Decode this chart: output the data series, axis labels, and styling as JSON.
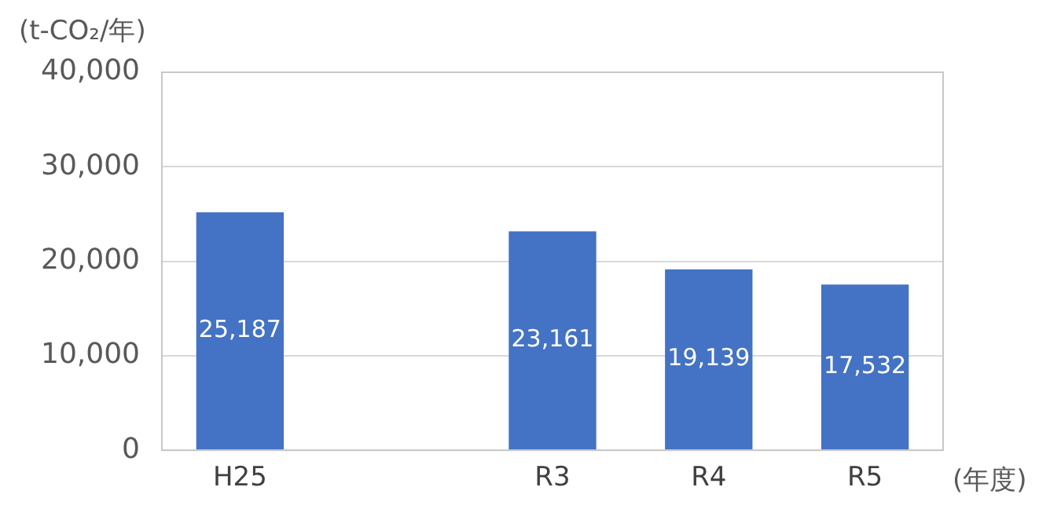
{
  "chart_data": {
    "type": "bar",
    "ylabel": "(t-CO₂/年)",
    "xlabel": "(年度)",
    "categories": [
      "H25",
      null,
      "R3",
      "R4",
      "R5"
    ],
    "values": [
      25187,
      null,
      23161,
      19139,
      17532
    ],
    "value_labels": [
      "25,187",
      null,
      "23,161",
      "19,139",
      "17,532"
    ],
    "color": "#4472c4",
    "ylim": [
      0,
      40000
    ],
    "yticks": [
      0,
      {
        "value": 10000,
        "label": "10,000"
      },
      {
        "value": 20000,
        "label": "20,000"
      },
      {
        "value": 30000,
        "label": "30,000"
      },
      {
        "value": 40000,
        "label": "40,000"
      }
    ],
    "grid": "y"
  }
}
